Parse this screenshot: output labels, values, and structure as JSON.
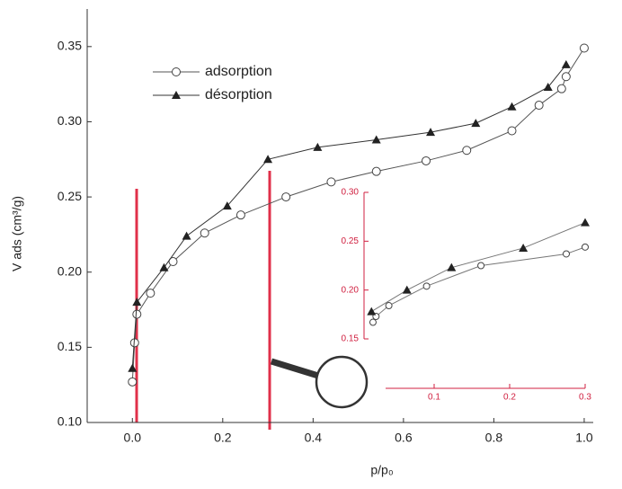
{
  "chart_data": [
    {
      "type": "line",
      "x_label": "p/p₀",
      "y_label": "V ads (cm³/g)",
      "xlim": [
        -0.1,
        1.02
      ],
      "ylim": [
        0.1,
        0.375
      ],
      "xticks": [
        {
          "value": 0,
          "label": "0.0"
        },
        {
          "value": 0.2,
          "label": "0.2"
        },
        0.4,
        0.6,
        0.8,
        {
          "value": 1,
          "label": "1.0"
        }
      ],
      "yticks": [
        {
          "value": 0.1,
          "label": "0.10"
        },
        0.15,
        {
          "value": 0.2,
          "label": "0.20"
        },
        0.25,
        {
          "value": 0.3,
          "label": "0.30"
        },
        0.35
      ],
      "legend": "upper left",
      "axis_color": "#333",
      "series": [
        {
          "name": "adsorption",
          "color": "#555",
          "marker": "circle",
          "x": [
            0,
            0.005,
            0.01,
            0.04,
            0.09,
            0.16,
            0.24,
            0.34,
            0.44,
            0.54,
            0.65,
            0.74,
            0.84,
            0.9,
            0.95,
            0.96,
            1.0
          ],
          "values": [
            0.127,
            0.153,
            0.172,
            0.186,
            0.207,
            0.226,
            0.238,
            0.25,
            0.26,
            0.267,
            0.274,
            0.281,
            0.294,
            0.311,
            0.322,
            0.33,
            0.349
          ]
        },
        {
          "name": "désorption",
          "color": "#333",
          "marker": "triangle",
          "x": [
            0,
            0.01,
            0.07,
            0.12,
            0.21,
            0.3,
            0.41,
            0.54,
            0.66,
            0.76,
            0.84,
            0.92,
            0.96
          ],
          "values": [
            0.136,
            0.18,
            0.203,
            0.224,
            0.244,
            0.275,
            0.283,
            0.288,
            0.293,
            0.299,
            0.31,
            0.323,
            0.338
          ]
        }
      ]
    },
    {
      "type": "line",
      "xlim": [
        0,
        0.3
      ],
      "ylim": [
        0.15,
        0.3
      ],
      "xticks": [
        0.1,
        0.2,
        0.3
      ],
      "yticks": [
        0.15,
        {
          "value": 0.2,
          "label": "0.20"
        },
        0.25,
        {
          "value": 0.3,
          "label": "0.30"
        }
      ],
      "axis_color": "#d02040",
      "series": [
        {
          "color": "#777",
          "marker": "circle",
          "x": [
            0.019,
            0.023,
            0.04,
            0.09,
            0.162,
            0.275,
            0.3
          ],
          "values": [
            0.167,
            0.173,
            0.184,
            0.204,
            0.225,
            0.237,
            0.244
          ]
        },
        {
          "color": "#777",
          "marker": "triangle",
          "x": [
            0.017,
            0.064,
            0.123,
            0.218,
            0.3
          ],
          "values": [
            0.178,
            0.2,
            0.223,
            0.243,
            0.269
          ]
        }
      ]
    }
  ]
}
